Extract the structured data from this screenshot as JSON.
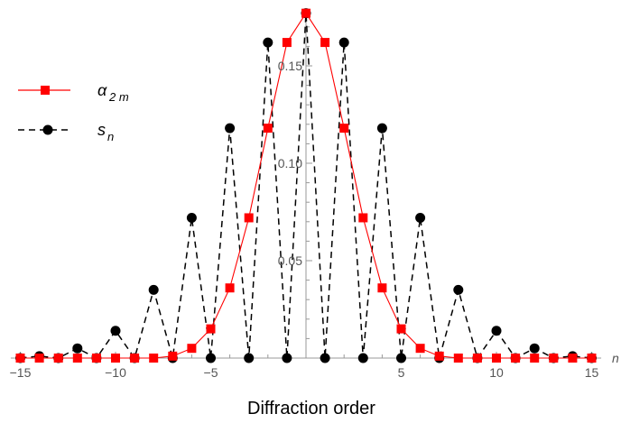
{
  "chart_data": {
    "type": "line",
    "xlabel": "Diffraction order",
    "x_axis_name": "n",
    "xlim": [
      -15.5,
      15.5
    ],
    "ylim": [
      0,
      0.175
    ],
    "x_ticks": [
      -15,
      -10,
      -5,
      5,
      10,
      15
    ],
    "x_tick_labels": [
      "−15",
      "−10",
      "−5",
      "5",
      "10",
      "15"
    ],
    "y_ticks": [
      0.05,
      0.1,
      0.15
    ],
    "y_tick_labels": [
      "0.05",
      "0.10",
      "0.15"
    ],
    "grid": false,
    "legend_position": "left",
    "series": [
      {
        "name": "α",
        "name_subscript": "2 m",
        "color": "#ff0000",
        "line_style": "solid",
        "marker": "square",
        "x": [
          -15,
          -14,
          -13,
          -12,
          -11,
          -10,
          -9,
          -8,
          -7,
          -6,
          -5,
          -4,
          -3,
          -2,
          -1,
          0,
          1,
          2,
          3,
          4,
          5,
          6,
          7,
          8,
          9,
          10,
          11,
          12,
          13,
          14,
          15
        ],
        "y": [
          0,
          0,
          0,
          0,
          0,
          0,
          0,
          0,
          0.001,
          0.005,
          0.015,
          0.036,
          0.072,
          0.118,
          0.162,
          0.177,
          0.162,
          0.118,
          0.072,
          0.036,
          0.015,
          0.005,
          0.001,
          0,
          0,
          0,
          0,
          0,
          0,
          0,
          0
        ]
      },
      {
        "name": "s",
        "name_subscript": "n",
        "color": "#000000",
        "line_style": "dashed",
        "marker": "circle",
        "x": [
          -15,
          -14,
          -13,
          -12,
          -11,
          -10,
          -9,
          -8,
          -7,
          -6,
          -5,
          -4,
          -3,
          -2,
          -1,
          0,
          1,
          2,
          3,
          4,
          5,
          6,
          7,
          8,
          9,
          10,
          11,
          12,
          13,
          14,
          15
        ],
        "y": [
          0,
          0.001,
          0,
          0.005,
          0,
          0.014,
          0,
          0.035,
          0,
          0.072,
          0,
          0.118,
          0,
          0.162,
          0,
          0.177,
          0,
          0.162,
          0,
          0.118,
          0,
          0.072,
          0,
          0.035,
          0,
          0.014,
          0,
          0.005,
          0,
          0.001,
          0
        ]
      }
    ]
  }
}
